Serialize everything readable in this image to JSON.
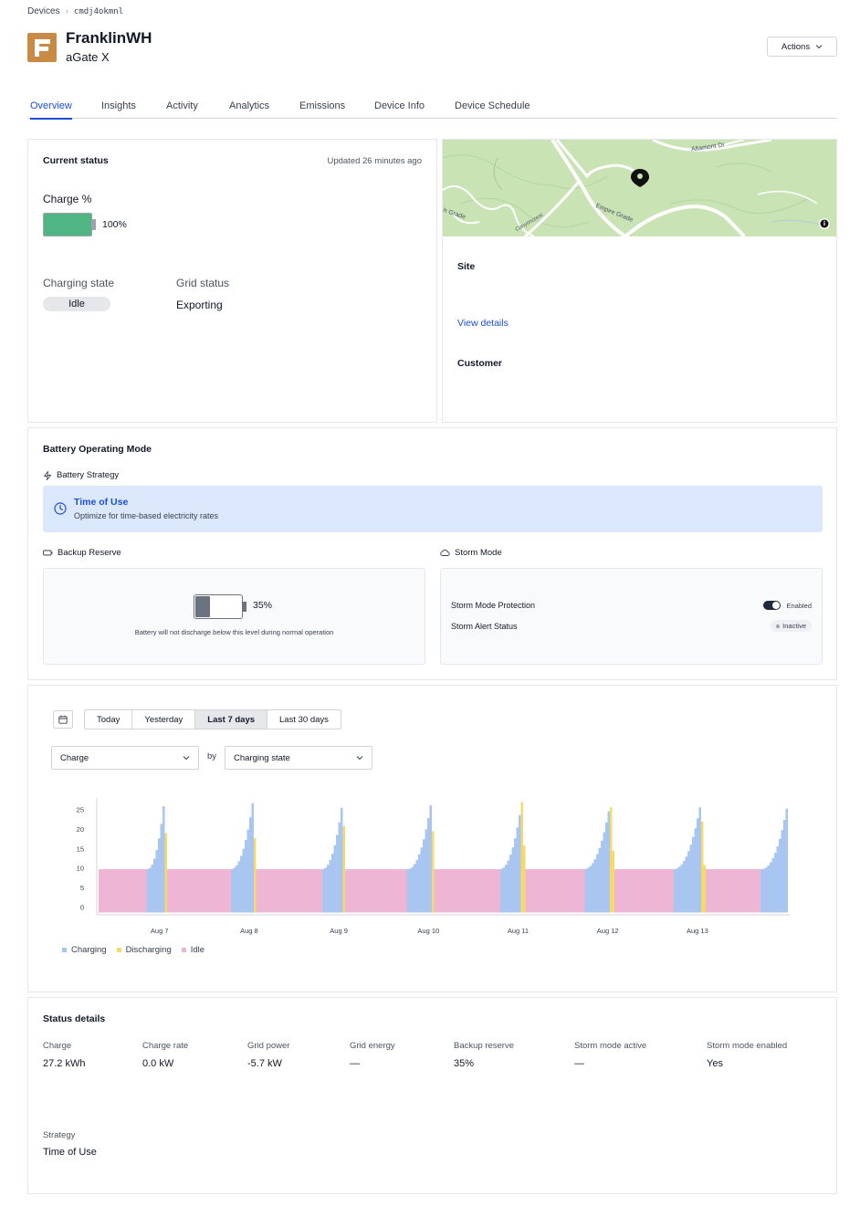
{
  "breadcrumb": {
    "root": "Devices",
    "current": "cmdj4okmnl"
  },
  "header": {
    "title": "FranklinWH",
    "subtitle": "aGate X",
    "actions_label": "Actions"
  },
  "tabs": [
    "Overview",
    "Insights",
    "Activity",
    "Analytics",
    "Emissions",
    "Device Info",
    "Device Schedule"
  ],
  "current_status": {
    "title": "Current status",
    "updated": "Updated 26 minutes ago",
    "charge_label": "Charge %",
    "charge_value": "100%",
    "charge_fraction": 1.0,
    "charging_state_label": "Charging state",
    "charging_state_value": "Idle",
    "grid_status_label": "Grid status",
    "grid_status_value": "Exporting"
  },
  "site": {
    "site_label": "Site",
    "view_details": "View details",
    "customer_label": "Customer",
    "map_labels": {
      "road1": "Altamont Dr",
      "road2": "Empire Grade",
      "road3": "h Grade",
      "road4": "Canyoncrest"
    }
  },
  "operating_mode": {
    "title": "Battery Operating Mode",
    "strategy_label": "Battery Strategy",
    "strategy_name": "Time of Use",
    "strategy_desc": "Optimize for time-based electricity rates",
    "backup_label": "Backup Reserve",
    "backup_value": "35%",
    "backup_fraction": 0.35,
    "backup_desc": "Battery will not discharge below this level during normal operation",
    "storm_label": "Storm Mode",
    "storm_protection_label": "Storm Mode Protection",
    "storm_protection_value": "Enabled",
    "storm_alert_label": "Storm Alert Status",
    "storm_alert_value": "Inactive"
  },
  "chart_controls": {
    "ranges": [
      "Today",
      "Yesterday",
      "Last 7 days",
      "Last 30 days"
    ],
    "active_range": "Last 7 days",
    "metric": "Charge",
    "by_label": "by",
    "group_by": "Charging state"
  },
  "colors": {
    "charging": "#a8c6ef",
    "discharging": "#f5d96b",
    "idle": "#eeb6d4",
    "accent": "#1d4ed8"
  },
  "chart_data": {
    "type": "area",
    "y_ticks": [
      25,
      20,
      15,
      10,
      5,
      0
    ],
    "ylim": [
      -2,
      27.5
    ],
    "x_labels": [
      "Aug 7",
      "Aug 8",
      "Aug 9",
      "Aug 10",
      "Aug 11",
      "Aug 12",
      "Aug 13"
    ],
    "x_label_positions_days": [
      1,
      2,
      3,
      4,
      5,
      6,
      7
    ],
    "xlim_days": [
      0.3,
      8.03
    ],
    "series_names": [
      "Charging",
      "Discharging",
      "Idle"
    ],
    "idle_level": 9.7,
    "peak": 27.2,
    "cycles": [
      {
        "charge_start": 0.85,
        "peak": 1.04,
        "discharge_end": 1.08
      },
      {
        "charge_start": 1.78,
        "peak": 2.03,
        "discharge_end": 2.07
      },
      {
        "charge_start": 2.8,
        "peak": 3.03,
        "discharge_end": 3.07
      },
      {
        "charge_start": 3.75,
        "peak": 4.02,
        "discharge_end": 4.06
      },
      {
        "charge_start": 4.78,
        "peak": 5.03,
        "discharge_end": 5.07
      },
      {
        "charge_start": 5.72,
        "peak": 6.02,
        "discharge_end": 6.06
      },
      {
        "charge_start": 6.72,
        "peak": 7.03,
        "discharge_end": 7.07
      },
      {
        "charge_start": 7.7,
        "peak": 8.0,
        "discharge_end": 8.03
      }
    ]
  },
  "status_details": {
    "title": "Status details",
    "fields": [
      {
        "label": "Charge",
        "value": "27.2 kWh"
      },
      {
        "label": "Charge rate",
        "value": "0.0 kW"
      },
      {
        "label": "Grid power",
        "value": "-5.7 kW"
      },
      {
        "label": "Grid energy",
        "value": "—"
      },
      {
        "label": "Backup reserve",
        "value": "35%"
      },
      {
        "label": "Storm mode active",
        "value": "—"
      },
      {
        "label": "Storm mode enabled",
        "value": "Yes"
      }
    ],
    "strategy_label": "Strategy",
    "strategy_value": "Time of Use"
  }
}
